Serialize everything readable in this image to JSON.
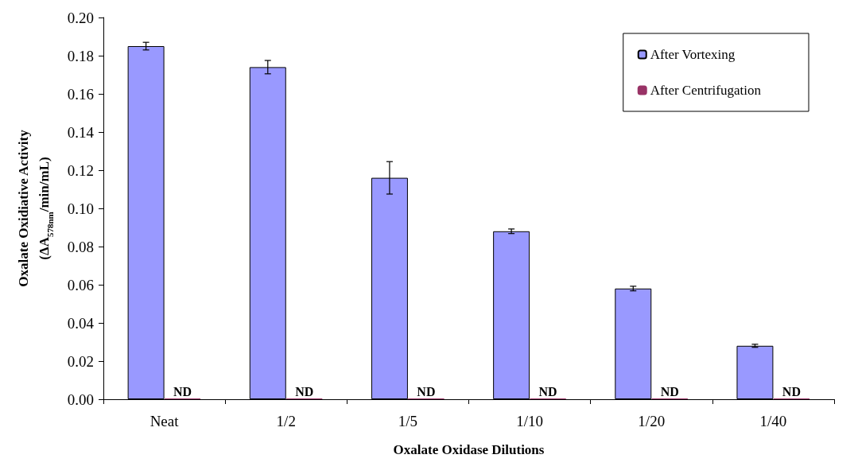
{
  "chart_data": {
    "type": "bar",
    "xlabel": "Oxalate Oxidase Dilutions",
    "ylabel": "Oxalate Oxidiative Activity\n(ΔA$_{578nm}$/min/mL)",
    "categories": [
      "Neat",
      "1/2",
      "1/5",
      "1/10",
      "1/20",
      "1/40"
    ],
    "series": [
      {
        "name": "After Vortexing",
        "color": "#9999ff",
        "values": [
          0.185,
          0.174,
          0.116,
          0.088,
          0.058,
          0.028
        ],
        "errors": [
          0.002,
          0.0035,
          0.0085,
          0.0012,
          0.0012,
          0.0008
        ]
      },
      {
        "name": "After Centrifugation",
        "color": "#993366",
        "values": [
          0,
          0,
          0,
          0,
          0,
          0
        ],
        "value_labels": [
          "ND",
          "ND",
          "ND",
          "ND",
          "ND",
          "ND"
        ]
      }
    ],
    "ylim": [
      0,
      0.2
    ],
    "yticks": [
      {
        "value": 0,
        "label": "0.00"
      },
      {
        "value": 0.02,
        "label": "0.02"
      },
      {
        "value": 0.04,
        "label": "0.04"
      },
      {
        "value": 0.06,
        "label": "0.06"
      },
      {
        "value": 0.08,
        "label": "0.08"
      },
      {
        "value": 0.1,
        "label": "0.10"
      },
      {
        "value": 0.12,
        "label": "0.12"
      },
      {
        "value": 0.14,
        "label": "0.14"
      },
      {
        "value": 0.16,
        "label": "0.16"
      },
      {
        "value": 0.18,
        "label": "0.18"
      },
      {
        "value": 0.2,
        "label": "0.20"
      }
    ],
    "grid": false,
    "legend": "top right"
  }
}
